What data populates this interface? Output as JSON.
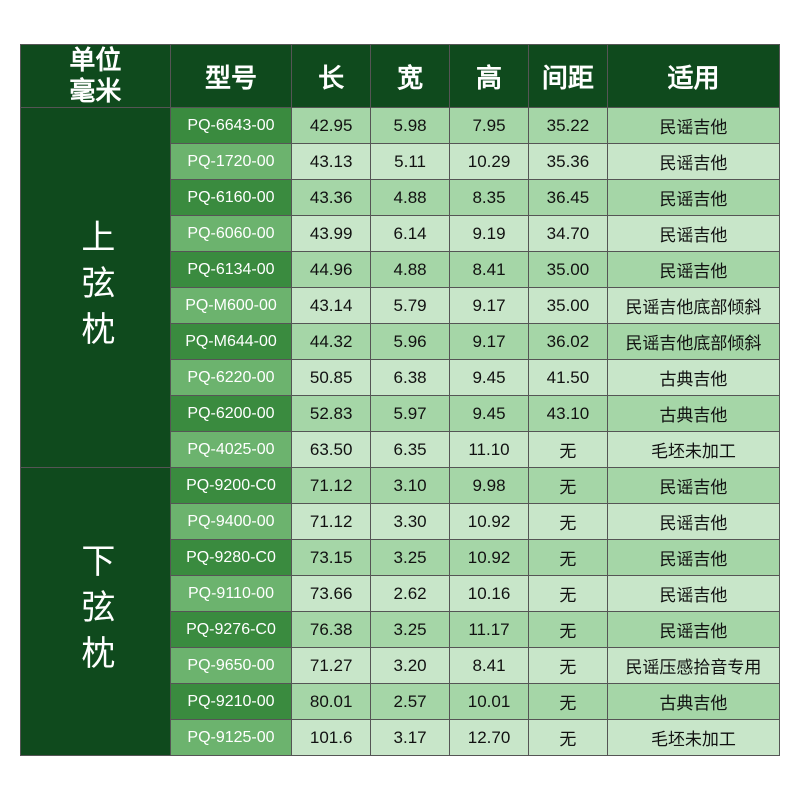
{
  "corner": {
    "line1": "单位",
    "line2": "毫米"
  },
  "headers": {
    "model": "型号",
    "length": "长",
    "width": "宽",
    "height": "高",
    "spacing": "间距",
    "app": "适用"
  },
  "sections": [
    {
      "label": "上弦枕",
      "rows": [
        {
          "model": "PQ-6643-00",
          "length": "42.95",
          "width": "5.98",
          "height": "7.95",
          "spacing": "35.22",
          "app": "民谣吉他"
        },
        {
          "model": "PQ-1720-00",
          "length": "43.13",
          "width": "5.11",
          "height": "10.29",
          "spacing": "35.36",
          "app": "民谣吉他"
        },
        {
          "model": "PQ-6160-00",
          "length": "43.36",
          "width": "4.88",
          "height": "8.35",
          "spacing": "36.45",
          "app": "民谣吉他"
        },
        {
          "model": "PQ-6060-00",
          "length": "43.99",
          "width": "6.14",
          "height": "9.19",
          "spacing": "34.70",
          "app": "民谣吉他"
        },
        {
          "model": "PQ-6134-00",
          "length": "44.96",
          "width": "4.88",
          "height": "8.41",
          "spacing": "35.00",
          "app": "民谣吉他"
        },
        {
          "model": "PQ-M600-00",
          "length": "43.14",
          "width": "5.79",
          "height": "9.17",
          "spacing": "35.00",
          "app": "民谣吉他底部倾斜"
        },
        {
          "model": "PQ-M644-00",
          "length": "44.32",
          "width": "5.96",
          "height": "9.17",
          "spacing": "36.02",
          "app": "民谣吉他底部倾斜"
        },
        {
          "model": "PQ-6220-00",
          "length": "50.85",
          "width": "6.38",
          "height": "9.45",
          "spacing": "41.50",
          "app": "古典吉他"
        },
        {
          "model": "PQ-6200-00",
          "length": "52.83",
          "width": "5.97",
          "height": "9.45",
          "spacing": "43.10",
          "app": "古典吉他"
        },
        {
          "model": "PQ-4025-00",
          "length": "63.50",
          "width": "6.35",
          "height": "11.10",
          "spacing": "无",
          "app": "毛坯未加工"
        }
      ]
    },
    {
      "label": "下弦枕",
      "rows": [
        {
          "model": "PQ-9200-C0",
          "length": "71.12",
          "width": "3.10",
          "height": "9.98",
          "spacing": "无",
          "app": "民谣吉他"
        },
        {
          "model": "PQ-9400-00",
          "length": "71.12",
          "width": "3.30",
          "height": "10.92",
          "spacing": "无",
          "app": "民谣吉他"
        },
        {
          "model": "PQ-9280-C0",
          "length": "73.15",
          "width": "3.25",
          "height": "10.92",
          "spacing": "无",
          "app": "民谣吉他"
        },
        {
          "model": "PQ-9110-00",
          "length": "73.66",
          "width": "2.62",
          "height": "10.16",
          "spacing": "无",
          "app": "民谣吉他"
        },
        {
          "model": "PQ-9276-C0",
          "length": "76.38",
          "width": "3.25",
          "height": "11.17",
          "spacing": "无",
          "app": "民谣吉他"
        },
        {
          "model": "PQ-9650-00",
          "length": "71.27",
          "width": "3.20",
          "height": "8.41",
          "spacing": "无",
          "app": "民谣压感拾音专用"
        },
        {
          "model": "PQ-9210-00",
          "length": "80.01",
          "width": "2.57",
          "height": "10.01",
          "spacing": "无",
          "app": "古典吉他"
        },
        {
          "model": "PQ-9125-00",
          "length": "101.6",
          "width": "3.17",
          "height": "12.70",
          "spacing": "无",
          "app": "毛坯未加工"
        }
      ]
    }
  ],
  "style": {
    "header_bg": "#0f4a1d",
    "header_fg": "#ffffff",
    "model_bg_dark": "#3a8b3f",
    "model_bg_light": "#6cb36e",
    "body_bg_dark": "#a5d6a7",
    "body_bg_light": "#c8e6c9",
    "border_color": "#555555",
    "body_text": "#111111",
    "header_fontsize": 26,
    "body_fontsize": 17,
    "section_fontsize": 34
  }
}
